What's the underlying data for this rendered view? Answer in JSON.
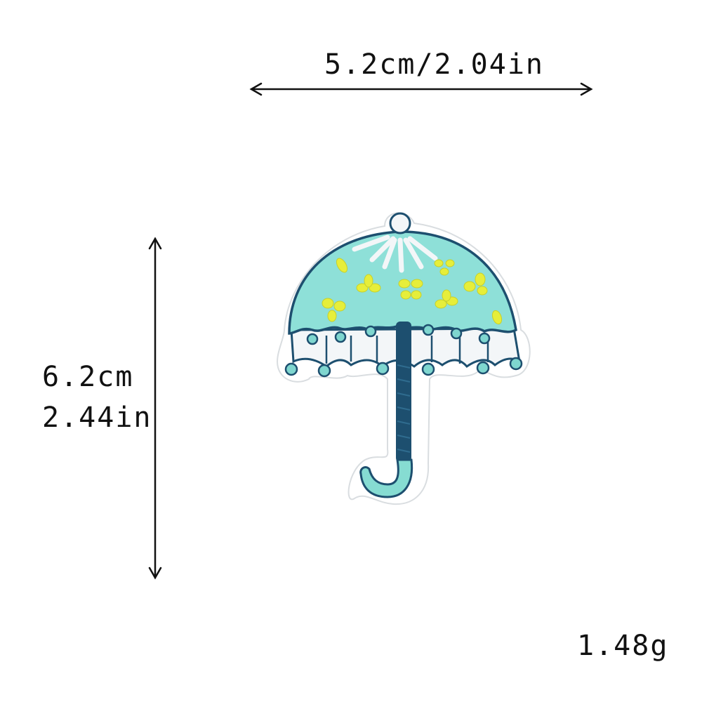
{
  "dimensions": {
    "width_label": "5.2cm/2.04in",
    "height_cm": "6.2cm",
    "height_in": "2.44in"
  },
  "weight": "1.48g",
  "product": {
    "icon": "umbrella-patch-icon",
    "colors": {
      "canopy": "#8ee0d8",
      "outline": "#1d4f6f",
      "flowers": "#e6ee3a",
      "fringe": "#f3f6f8",
      "pompom": "#7fd6cf",
      "handle": "#1d4f6f",
      "crook": "#86dcd2"
    }
  }
}
